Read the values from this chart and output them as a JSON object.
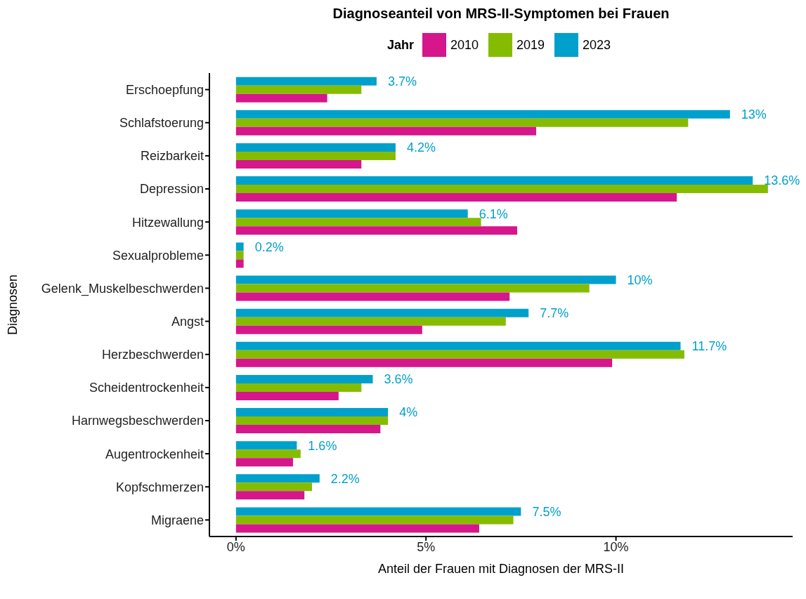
{
  "chart_data": {
    "type": "bar",
    "orientation": "horizontal",
    "title": "Diagnoseanteil von MRS-II-Symptomen bei Frauen",
    "xlabel": "Anteil der Frauen mit Diagnosen der MRS-II",
    "ylabel": "Diagnosen",
    "legend_title": "Jahr",
    "legend": "top",
    "categories": [
      "Erschoepfung",
      "Schlafstoerung",
      "Reizbarkeit",
      "Depression",
      "Hitzewallung",
      "Sexualprobleme",
      "Gelenk_Muskelbeschwerden",
      "Angst",
      "Herzbeschwerden",
      "Scheidentrockenheit",
      "Harnwegsbeschwerden",
      "Augentrockenheit",
      "Kopfschmerzen",
      "Migraene"
    ],
    "xlim": [
      -0.7,
      14.65
    ],
    "xticks": [
      {
        "value": 0,
        "label": "0%"
      },
      {
        "value": 5,
        "label": "5%"
      },
      {
        "value": 10,
        "label": "10%"
      }
    ],
    "series": [
      {
        "name": "2010",
        "color": "#d6168b",
        "values": [
          2.4,
          7.9,
          3.3,
          11.6,
          7.4,
          0.2,
          7.2,
          4.9,
          9.9,
          2.7,
          3.8,
          1.5,
          1.8,
          6.4
        ]
      },
      {
        "name": "2019",
        "color": "#86bc00",
        "values": [
          3.3,
          11.9,
          4.2,
          14.0,
          6.45,
          0.2,
          9.3,
          7.1,
          11.8,
          3.3,
          4.0,
          1.7,
          2.0,
          7.3
        ]
      },
      {
        "name": "2023",
        "color": "#00a0cc",
        "values": [
          3.7,
          13.0,
          4.2,
          13.6,
          6.1,
          0.2,
          10.0,
          7.7,
          11.7,
          3.6,
          4.0,
          1.6,
          2.2,
          7.5
        ],
        "value_labels": [
          "3.7%",
          "13%",
          "4.2%",
          "13.6%",
          "6.1%",
          "0.2%",
          "10%",
          "7.7%",
          "11.7%",
          "3.6%",
          "4%",
          "1.6%",
          "2.2%",
          "7.5%"
        ]
      }
    ]
  }
}
